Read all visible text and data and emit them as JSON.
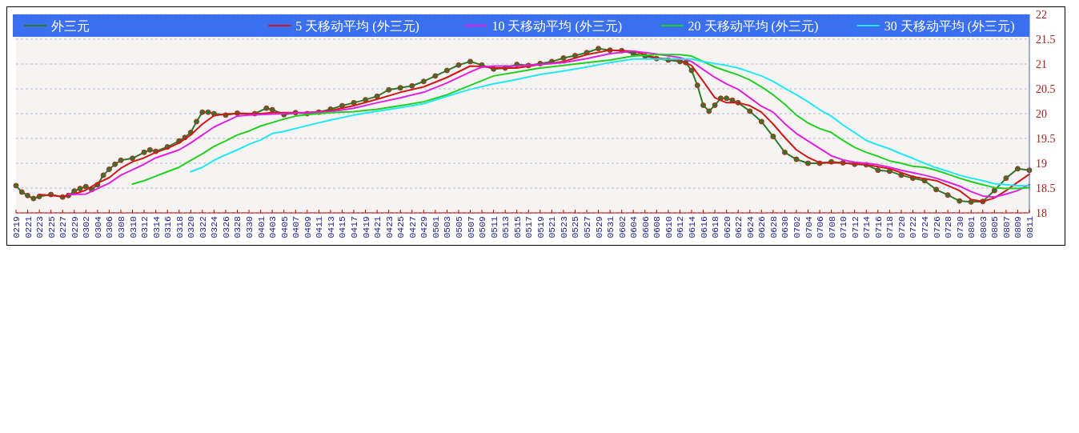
{
  "chart_data": {
    "type": "line",
    "legend": "top",
    "grid": "y",
    "ylim": [
      18,
      22
    ],
    "yticks": [
      18,
      18.5,
      19,
      19.5,
      20,
      20.5,
      21,
      21.5,
      22
    ],
    "xlim": [
      "--02-19",
      "--08-11"
    ],
    "xticks": [
      {
        "value": "--02-19",
        "label": "0219"
      },
      {
        "value": "--02-21",
        "label": "0221"
      },
      {
        "value": "--02-23",
        "label": "0223"
      },
      {
        "value": "--02-25",
        "label": "0225"
      },
      {
        "value": "--02-27",
        "label": "0227"
      },
      {
        "value": "--02-29",
        "label": "0229"
      },
      {
        "value": "--03-02",
        "label": "0302"
      },
      {
        "value": "--03-04",
        "label": "0304"
      },
      {
        "value": "--03-06",
        "label": "0306"
      },
      {
        "value": "--03-08",
        "label": "0308"
      },
      {
        "value": "--03-10",
        "label": "0310"
      },
      {
        "value": "--03-12",
        "label": "0312"
      },
      {
        "value": "--03-14",
        "label": "0314"
      },
      {
        "value": "--03-16",
        "label": "0316"
      },
      {
        "value": "--03-18",
        "label": "0318"
      },
      {
        "value": "--03-20",
        "label": "0320"
      },
      {
        "value": "--03-22",
        "label": "0322"
      },
      {
        "value": "--03-24",
        "label": "0324"
      },
      {
        "value": "--03-26",
        "label": "0326"
      },
      {
        "value": "--03-28",
        "label": "0328"
      },
      {
        "value": "--03-30",
        "label": "0330"
      },
      {
        "value": "--04-01",
        "label": "0401"
      },
      {
        "value": "--04-03",
        "label": "0403"
      },
      {
        "value": "--04-05",
        "label": "0405"
      },
      {
        "value": "--04-07",
        "label": "0407"
      },
      {
        "value": "--04-09",
        "label": "0409"
      },
      {
        "value": "--04-11",
        "label": "0411"
      },
      {
        "value": "--04-13",
        "label": "0413"
      },
      {
        "value": "--04-15",
        "label": "0415"
      },
      {
        "value": "--04-17",
        "label": "0417"
      },
      {
        "value": "--04-19",
        "label": "0419"
      },
      {
        "value": "--04-21",
        "label": "0421"
      },
      {
        "value": "--04-23",
        "label": "0423"
      },
      {
        "value": "--04-25",
        "label": "0425"
      },
      {
        "value": "--04-27",
        "label": "0427"
      },
      {
        "value": "--04-29",
        "label": "0429"
      },
      {
        "value": "--05-01",
        "label": "0501"
      },
      {
        "value": "--05-03",
        "label": "0503"
      },
      {
        "value": "--05-05",
        "label": "0505"
      },
      {
        "value": "--05-07",
        "label": "0507"
      },
      {
        "value": "--05-09",
        "label": "0509"
      },
      {
        "value": "--05-11",
        "label": "0511"
      },
      {
        "value": "--05-13",
        "label": "0513"
      },
      {
        "value": "--05-15",
        "label": "0515"
      },
      {
        "value": "--05-17",
        "label": "0517"
      },
      {
        "value": "--05-19",
        "label": "0519"
      },
      {
        "value": "--05-21",
        "label": "0521"
      },
      {
        "value": "--05-23",
        "label": "0523"
      },
      {
        "value": "--05-25",
        "label": "0525"
      },
      {
        "value": "--05-27",
        "label": "0527"
      },
      {
        "value": "--05-29",
        "label": "0529"
      },
      {
        "value": "--05-31",
        "label": "0531"
      },
      {
        "value": "--06-02",
        "label": "0602"
      },
      {
        "value": "--06-04",
        "label": "0604"
      },
      {
        "value": "--06-06",
        "label": "0606"
      },
      {
        "value": "--06-08",
        "label": "0608"
      },
      {
        "value": "--06-10",
        "label": "0610"
      },
      {
        "value": "--06-12",
        "label": "0612"
      },
      {
        "value": "--06-14",
        "label": "0614"
      },
      {
        "value": "--06-16",
        "label": "0616"
      },
      {
        "value": "--06-18",
        "label": "0618"
      },
      {
        "value": "--06-20",
        "label": "0620"
      },
      {
        "value": "--06-22",
        "label": "0622"
      },
      {
        "value": "--06-24",
        "label": "0624"
      },
      {
        "value": "--06-26",
        "label": "0626"
      },
      {
        "value": "--06-28",
        "label": "0628"
      },
      {
        "value": "--06-30",
        "label": "0630"
      },
      {
        "value": "--07-02",
        "label": "0702"
      },
      {
        "value": "--07-04",
        "label": "0704"
      },
      {
        "value": "--07-06",
        "label": "0706"
      },
      {
        "value": "--07-08",
        "label": "0708"
      },
      {
        "value": "--07-10",
        "label": "0710"
      },
      {
        "value": "--07-12",
        "label": "0712"
      },
      {
        "value": "--07-14",
        "label": "0714"
      },
      {
        "value": "--07-16",
        "label": "0716"
      },
      {
        "value": "--07-18",
        "label": "0718"
      },
      {
        "value": "--07-20",
        "label": "0720"
      },
      {
        "value": "--07-22",
        "label": "0722"
      },
      {
        "value": "--07-24",
        "label": "0724"
      },
      {
        "value": "--07-26",
        "label": "0726"
      },
      {
        "value": "--07-28",
        "label": "0728"
      },
      {
        "value": "--07-30",
        "label": "0730"
      },
      {
        "value": "--08-01",
        "label": "0801"
      },
      {
        "value": "--08-03",
        "label": "0803"
      },
      {
        "value": "--08-05",
        "label": "0805"
      },
      {
        "value": "--08-07",
        "label": "0807"
      },
      {
        "value": "--08-09",
        "label": "0809"
      },
      {
        "value": "--08-11",
        "label": "0811"
      }
    ],
    "series": [
      {
        "name": "外三元",
        "color": "#2a7a2a",
        "marker": "circle",
        "x": [
          "--02-19",
          "--02-20",
          "--02-21",
          "--02-22",
          "--02-23",
          "--02-25",
          "--02-27",
          "--02-28",
          "--02-29",
          "--03-01",
          "--03-02",
          "--03-03",
          "--03-04",
          "--03-05",
          "--03-06",
          "--03-07",
          "--03-08",
          "--03-10",
          "--03-12",
          "--03-13",
          "--03-14",
          "--03-16",
          "--03-18",
          "--03-19",
          "--03-20",
          "--03-21",
          "--03-22",
          "--03-23",
          "--03-24",
          "--03-26",
          "--03-28",
          "--03-31",
          "--04-02",
          "--04-03",
          "--04-05",
          "--04-07",
          "--04-09",
          "--04-11",
          "--04-13",
          "--04-15",
          "--04-17",
          "--04-19",
          "--04-21",
          "--04-23",
          "--04-25",
          "--04-27",
          "--04-29",
          "--05-01",
          "--05-03",
          "--05-05",
          "--05-07",
          "--05-09",
          "--05-11",
          "--05-13",
          "--05-15",
          "--05-17",
          "--05-19",
          "--05-21",
          "--05-23",
          "--05-25",
          "--05-27",
          "--05-29",
          "--05-31",
          "--06-02",
          "--06-04",
          "--06-06",
          "--06-08",
          "--06-10",
          "--06-12",
          "--06-13",
          "--06-14",
          "--06-15",
          "--06-16",
          "--06-17",
          "--06-18",
          "--06-19",
          "--06-20",
          "--06-21",
          "--06-22",
          "--06-24",
          "--06-26",
          "--06-28",
          "--06-30",
          "--07-02",
          "--07-04",
          "--07-06",
          "--07-08",
          "--07-10",
          "--07-12",
          "--07-14",
          "--07-16",
          "--07-18",
          "--07-20",
          "--07-22",
          "--07-24",
          "--07-26",
          "--07-28",
          "--07-30",
          "--08-01",
          "--08-03",
          "--08-05",
          "--08-07",
          "--08-09",
          "--08-11"
        ],
        "values": [
          18.55,
          18.42,
          18.35,
          18.29,
          18.33,
          18.37,
          18.32,
          18.35,
          18.44,
          18.49,
          18.53,
          18.47,
          18.57,
          18.76,
          18.88,
          18.98,
          19.06,
          19.1,
          19.22,
          19.27,
          19.24,
          19.33,
          19.45,
          19.52,
          19.62,
          19.84,
          20.03,
          20.03,
          20.0,
          19.97,
          20.01,
          20.0,
          20.11,
          20.08,
          19.98,
          20.02,
          20.0,
          20.03,
          20.09,
          20.16,
          20.22,
          20.28,
          20.35,
          20.48,
          20.52,
          20.56,
          20.65,
          20.76,
          20.87,
          20.98,
          21.05,
          20.98,
          20.9,
          20.92,
          20.99,
          20.97,
          21.01,
          21.05,
          21.12,
          21.17,
          21.23,
          21.31,
          21.28,
          21.27,
          21.21,
          21.16,
          21.11,
          21.08,
          21.05,
          21.03,
          20.87,
          20.57,
          20.17,
          20.05,
          20.17,
          20.31,
          20.31,
          20.27,
          20.22,
          20.05,
          19.84,
          19.54,
          19.22,
          19.08,
          19.0,
          19.0,
          19.03,
          19.01,
          18.98,
          18.97,
          18.86,
          18.84,
          18.76,
          18.7,
          18.65,
          18.47,
          18.36,
          18.24,
          18.22,
          18.23,
          18.45,
          18.7,
          18.89,
          18.86
        ]
      },
      {
        "name": "5 天移动平均 (外三元)",
        "color": "#d01818",
        "x": [
          "--02-23",
          "--02-25",
          "--02-27",
          "--02-29",
          "--03-02",
          "--03-04",
          "--03-06",
          "--03-08",
          "--03-10",
          "--03-12",
          "--03-14",
          "--03-16",
          "--03-18",
          "--03-20",
          "--03-22",
          "--03-24",
          "--03-26",
          "--03-28",
          "--04-01",
          "--04-03",
          "--04-05",
          "--04-09",
          "--04-13",
          "--04-17",
          "--04-21",
          "--04-25",
          "--04-29",
          "--05-03",
          "--05-07",
          "--05-09",
          "--05-11",
          "--05-15",
          "--05-19",
          "--05-23",
          "--05-27",
          "--05-31",
          "--06-04",
          "--06-08",
          "--06-12",
          "--06-14",
          "--06-16",
          "--06-18",
          "--06-20",
          "--06-22",
          "--06-24",
          "--06-26",
          "--06-28",
          "--06-30",
          "--07-02",
          "--07-04",
          "--07-06",
          "--07-10",
          "--07-14",
          "--07-18",
          "--07-22",
          "--07-26",
          "--07-30",
          "--08-01",
          "--08-03",
          "--08-05",
          "--08-07",
          "--08-09",
          "--08-11"
        ],
        "values": [
          18.37,
          18.35,
          18.33,
          18.38,
          18.46,
          18.6,
          18.71,
          18.9,
          19.03,
          19.11,
          19.22,
          19.3,
          19.41,
          19.57,
          19.79,
          19.96,
          19.99,
          20.0,
          20.0,
          20.02,
          20.02,
          20.02,
          20.06,
          20.16,
          20.29,
          20.43,
          20.54,
          20.73,
          20.96,
          20.95,
          20.92,
          20.92,
          20.99,
          21.05,
          21.19,
          21.28,
          21.26,
          21.12,
          21.08,
          20.97,
          20.65,
          20.32,
          20.22,
          20.22,
          20.16,
          20.03,
          19.79,
          19.52,
          19.27,
          19.12,
          19.01,
          19.01,
          18.97,
          18.89,
          18.73,
          18.65,
          18.45,
          18.27,
          18.23,
          18.3,
          18.45,
          18.62,
          18.78
        ]
      },
      {
        "name": "10 天移动平均 (外三元)",
        "color": "#e020e0",
        "x": [
          "--02-28",
          "--03-02",
          "--03-04",
          "--03-06",
          "--03-08",
          "--03-10",
          "--03-12",
          "--03-14",
          "--03-16",
          "--03-18",
          "--03-20",
          "--03-22",
          "--03-24",
          "--03-26",
          "--03-28",
          "--03-30",
          "--04-03",
          "--04-09",
          "--04-13",
          "--04-17",
          "--04-21",
          "--04-25",
          "--04-29",
          "--05-03",
          "--05-07",
          "--05-09",
          "--05-11",
          "--05-15",
          "--05-19",
          "--05-23",
          "--05-27",
          "--05-31",
          "--06-04",
          "--06-08",
          "--06-12",
          "--06-14",
          "--06-16",
          "--06-18",
          "--06-20",
          "--06-22",
          "--06-24",
          "--06-26",
          "--06-28",
          "--06-30",
          "--07-02",
          "--07-04",
          "--07-06",
          "--07-08",
          "--07-10",
          "--07-12",
          "--07-14",
          "--07-16",
          "--07-18",
          "--07-20",
          "--07-22",
          "--07-24",
          "--07-26",
          "--07-28",
          "--07-30",
          "--08-01",
          "--08-03",
          "--08-05",
          "--08-07",
          "--08-09",
          "--08-11"
        ],
        "values": [
          18.37,
          18.38,
          18.49,
          18.6,
          18.76,
          18.87,
          18.98,
          19.11,
          19.19,
          19.27,
          19.41,
          19.57,
          19.73,
          19.84,
          19.95,
          19.97,
          19.99,
          20.02,
          20.04,
          20.11,
          20.22,
          20.32,
          20.43,
          20.62,
          20.84,
          20.94,
          20.96,
          20.96,
          20.99,
          21.03,
          21.11,
          21.21,
          21.26,
          21.2,
          21.13,
          21.05,
          20.89,
          20.73,
          20.6,
          20.49,
          20.32,
          20.15,
          20.03,
          19.8,
          19.6,
          19.45,
          19.3,
          19.15,
          19.07,
          19.02,
          19.0,
          18.97,
          18.92,
          18.86,
          18.81,
          18.76,
          18.7,
          18.62,
          18.54,
          18.43,
          18.34,
          18.32,
          18.38,
          18.45,
          18.57
        ]
      },
      {
        "name": "20 天移动平均 (外三元)",
        "color": "#20d020",
        "x": [
          "--03-10",
          "--03-12",
          "--03-14",
          "--03-16",
          "--03-18",
          "--03-20",
          "--03-22",
          "--03-24",
          "--03-26",
          "--03-28",
          "--03-30",
          "--04-01",
          "--04-03",
          "--04-05",
          "--04-07",
          "--04-09",
          "--04-13",
          "--04-17",
          "--04-21",
          "--04-25",
          "--04-29",
          "--05-03",
          "--05-07",
          "--05-11",
          "--05-15",
          "--05-19",
          "--05-23",
          "--05-27",
          "--05-31",
          "--06-04",
          "--06-08",
          "--06-12",
          "--06-14",
          "--06-16",
          "--06-18",
          "--06-20",
          "--06-22",
          "--06-24",
          "--06-26",
          "--06-28",
          "--06-30",
          "--07-02",
          "--07-04",
          "--07-06",
          "--07-08",
          "--07-10",
          "--07-12",
          "--07-14",
          "--07-16",
          "--07-18",
          "--07-20",
          "--07-22",
          "--07-24",
          "--07-26",
          "--07-28",
          "--07-30",
          "--08-01",
          "--08-03",
          "--08-05",
          "--08-07",
          "--08-09",
          "--08-11"
        ],
        "values": [
          18.58,
          18.65,
          18.74,
          18.83,
          18.92,
          19.06,
          19.19,
          19.34,
          19.45,
          19.57,
          19.65,
          19.75,
          19.82,
          19.89,
          19.95,
          19.98,
          20.02,
          20.04,
          20.09,
          20.16,
          20.24,
          20.38,
          20.57,
          20.76,
          20.84,
          20.92,
          20.97,
          21.03,
          21.08,
          21.16,
          21.19,
          21.19,
          21.16,
          21.05,
          20.94,
          20.86,
          20.78,
          20.68,
          20.54,
          20.38,
          20.19,
          19.97,
          19.81,
          19.7,
          19.62,
          19.46,
          19.32,
          19.22,
          19.14,
          19.05,
          19.0,
          18.94,
          18.92,
          18.86,
          18.78,
          18.7,
          18.63,
          18.57,
          18.51,
          18.49,
          18.49,
          18.51
        ]
      },
      {
        "name": "30 天移动平均 (外三元)",
        "color": "#20e8f0",
        "x": [
          "--03-20",
          "--03-22",
          "--03-24",
          "--03-26",
          "--03-28",
          "--03-30",
          "--04-01",
          "--04-03",
          "--04-05",
          "--04-09",
          "--04-13",
          "--04-17",
          "--04-21",
          "--04-25",
          "--04-29",
          "--05-03",
          "--05-07",
          "--05-11",
          "--05-15",
          "--05-19",
          "--05-23",
          "--05-27",
          "--05-31",
          "--06-04",
          "--06-08",
          "--06-12",
          "--06-14",
          "--06-16",
          "--06-18",
          "--06-20",
          "--06-22",
          "--06-24",
          "--06-26",
          "--06-28",
          "--06-30",
          "--07-02",
          "--07-04",
          "--07-06",
          "--07-08",
          "--07-10",
          "--07-12",
          "--07-14",
          "--07-16",
          "--07-18",
          "--07-20",
          "--07-22",
          "--07-24",
          "--07-26",
          "--07-28",
          "--07-30",
          "--08-01",
          "--08-03",
          "--08-05",
          "--08-07",
          "--08-09",
          "--08-11"
        ],
        "values": [
          18.83,
          18.92,
          19.06,
          19.17,
          19.27,
          19.38,
          19.47,
          19.6,
          19.64,
          19.76,
          19.87,
          19.97,
          20.05,
          20.12,
          20.2,
          20.35,
          20.49,
          20.6,
          20.69,
          20.79,
          20.86,
          20.94,
          21.03,
          21.1,
          21.1,
          21.1,
          21.1,
          21.05,
          21.01,
          20.97,
          20.92,
          20.84,
          20.76,
          20.65,
          20.51,
          20.38,
          20.24,
          20.08,
          19.95,
          19.77,
          19.62,
          19.46,
          19.37,
          19.29,
          19.19,
          19.1,
          19.0,
          18.91,
          18.84,
          18.76,
          18.7,
          18.65,
          18.59,
          18.57,
          18.55,
          18.55
        ]
      }
    ]
  }
}
